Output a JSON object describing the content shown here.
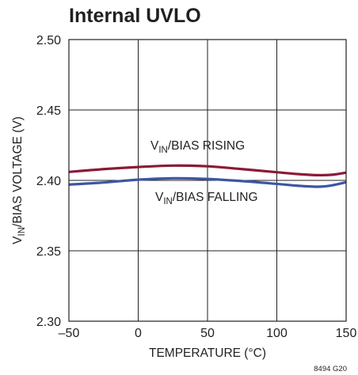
{
  "colors": {
    "rising": "#8b1a38",
    "falling": "#3b56a4",
    "frame": "#231f20",
    "grid": "#231f20"
  },
  "chart_data": {
    "type": "line",
    "title": "Internal UVLO",
    "xlabel": "TEMPERATURE (°C)",
    "ylabel": "V_IN/BIAS VOLTAGE (V)",
    "ylabel_parts": {
      "main": "V",
      "sub": "IN",
      "rest": "/BIAS VOLTAGE (V)"
    },
    "xlim": [
      -50,
      150
    ],
    "ylim": [
      2.3,
      2.5
    ],
    "x_ticks": [
      -50,
      0,
      50,
      100,
      150
    ],
    "y_ticks": [
      2.3,
      2.35,
      2.4,
      2.45,
      2.5
    ],
    "x_tick_labels": [
      "–50",
      "0",
      "50",
      "100",
      "150"
    ],
    "y_tick_labels": [
      "2.30",
      "2.35",
      "2.40",
      "2.45",
      "2.50"
    ],
    "grid": true,
    "series": [
      {
        "name": "V_IN/BIAS RISING",
        "label_parts": {
          "main": "V",
          "sub": "IN",
          "rest": "/BIAS RISING"
        },
        "color": "#8b1a38",
        "x": [
          -50,
          -25,
          0,
          25,
          50,
          75,
          100,
          115,
          130,
          140,
          150
        ],
        "y": [
          2.406,
          2.408,
          2.4095,
          2.4105,
          2.41,
          2.408,
          2.4058,
          2.4045,
          2.4037,
          2.404,
          2.4055
        ]
      },
      {
        "name": "V_IN/BIAS FALLING",
        "label_parts": {
          "main": "V",
          "sub": "IN",
          "rest": "/BIAS FALLING"
        },
        "color": "#3b56a4",
        "x": [
          -50,
          -25,
          0,
          25,
          50,
          75,
          100,
          115,
          130,
          140,
          150
        ],
        "y": [
          2.397,
          2.3985,
          2.4005,
          2.4015,
          2.401,
          2.3995,
          2.3975,
          2.3962,
          2.3955,
          2.3965,
          2.3987
        ]
      }
    ],
    "footnote": "8494 G20"
  }
}
